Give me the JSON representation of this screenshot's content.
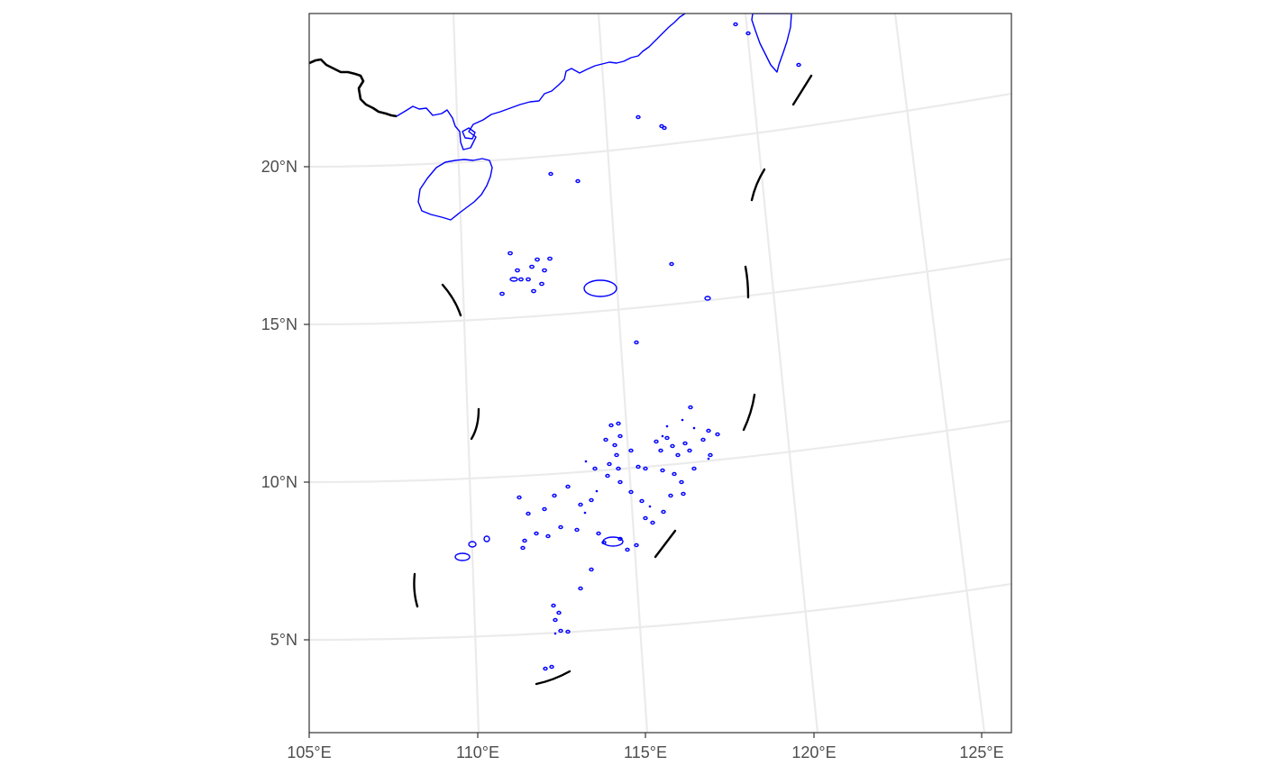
{
  "map": {
    "lon_range": [
      105,
      125.8
    ],
    "lat_range": [
      2,
      24.8
    ],
    "colors": {
      "coastline": "#0000ff",
      "land_border": "#000000",
      "claim_dashes": "#000000",
      "graticule": "#ebebeb",
      "frame": "#333333"
    },
    "graticule": {
      "lat_lines": [
        5,
        10,
        15,
        20,
        25
      ],
      "lon_lines": [
        110,
        115,
        120,
        125
      ]
    },
    "y_axis_ticks": [
      {
        "value": 20,
        "label": "20°N"
      },
      {
        "value": 15,
        "label": "15°N"
      },
      {
        "value": 10,
        "label": "10°N"
      },
      {
        "value": 5,
        "label": "5°N"
      }
    ],
    "x_axis_ticks": [
      {
        "value": 105,
        "label": "105°E"
      },
      {
        "value": 110,
        "label": "110°E"
      },
      {
        "value": 115,
        "label": "115°E"
      },
      {
        "value": 120,
        "label": "120°E"
      },
      {
        "value": 125,
        "label": "125°E"
      }
    ],
    "features": [
      "mainland-coastline",
      "hainan-island",
      "taiwan-island",
      "paracel-islands",
      "macclesfield-bank",
      "spratly-islands",
      "land-border",
      "nine-dash-line"
    ]
  }
}
